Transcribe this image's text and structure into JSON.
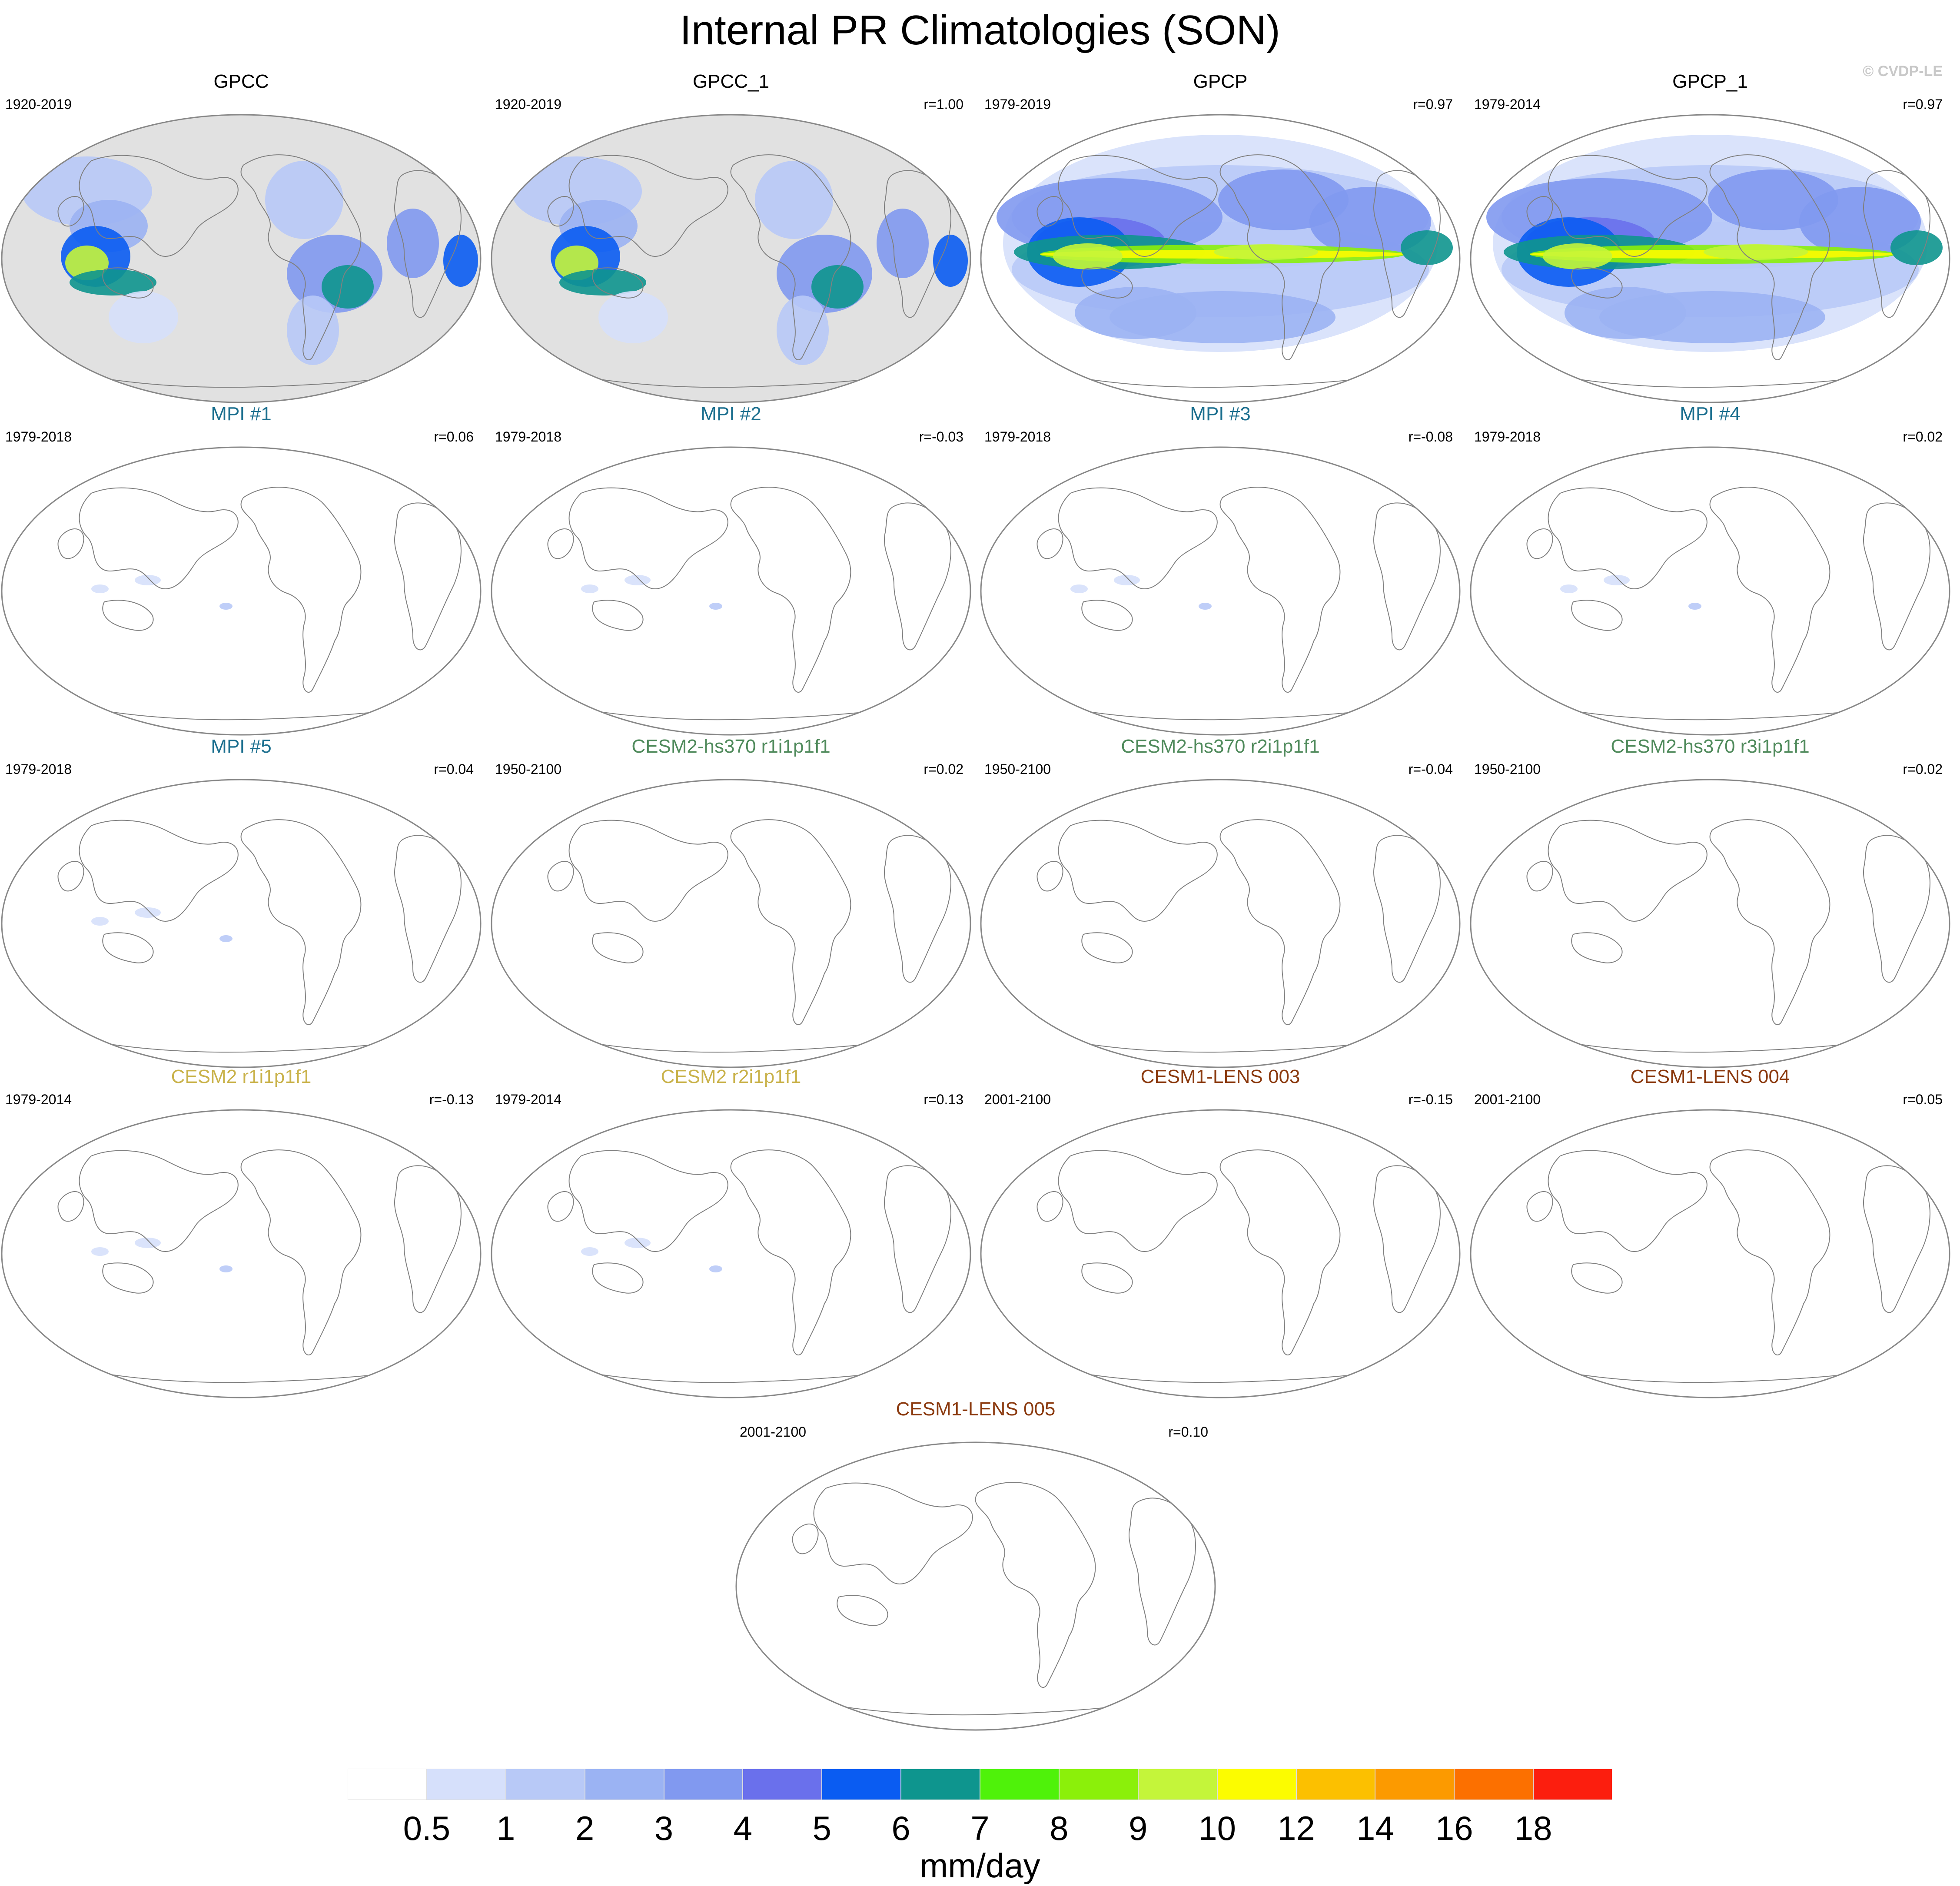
{
  "title": "Internal PR Climatologies (SON)",
  "credit": "© CVDP-LE",
  "panels": [
    {
      "title": "GPCC",
      "years": "1920-2019",
      "r": "",
      "title_color": "#000000",
      "field": "land_obs"
    },
    {
      "title": "GPCC_1",
      "years": "1920-2019",
      "r": "r=1.00",
      "title_color": "#000000",
      "field": "land_obs"
    },
    {
      "title": "GPCP",
      "years": "1979-2019",
      "r": "r=0.97",
      "title_color": "#000000",
      "field": "global_obs"
    },
    {
      "title": "GPCP_1",
      "years": "1979-2014",
      "r": "r=0.97",
      "title_color": "#000000",
      "field": "global_obs"
    },
    {
      "title": "MPI #1",
      "years": "1979-2018",
      "r": "r=0.06",
      "title_color": "#1a6e8e",
      "field": "sparse"
    },
    {
      "title": "MPI #2",
      "years": "1979-2018",
      "r": "r=-0.03",
      "title_color": "#1a6e8e",
      "field": "sparse"
    },
    {
      "title": "MPI #3",
      "years": "1979-2018",
      "r": "r=-0.08",
      "title_color": "#1a6e8e",
      "field": "sparse"
    },
    {
      "title": "MPI #4",
      "years": "1979-2018",
      "r": "r=0.02",
      "title_color": "#1a6e8e",
      "field": "sparse"
    },
    {
      "title": "MPI #5",
      "years": "1979-2018",
      "r": "r=0.04",
      "title_color": "#1a6e8e",
      "field": "sparse"
    },
    {
      "title": "CESM2-hs370 r1i1p1f1",
      "years": "1950-2100",
      "r": "r=0.02",
      "title_color": "#4f8a5b",
      "field": "empty"
    },
    {
      "title": "CESM2-hs370 r2i1p1f1",
      "years": "1950-2100",
      "r": "r=-0.04",
      "title_color": "#4f8a5b",
      "field": "empty"
    },
    {
      "title": "CESM2-hs370 r3i1p1f1",
      "years": "1950-2100",
      "r": "r=0.02",
      "title_color": "#4f8a5b",
      "field": "empty"
    },
    {
      "title": "CESM2 r1i1p1f1",
      "years": "1979-2014",
      "r": "r=-0.13",
      "title_color": "#c9b24a",
      "field": "sparse"
    },
    {
      "title": "CESM2 r2i1p1f1",
      "years": "1979-2014",
      "r": "r=0.13",
      "title_color": "#c9b24a",
      "field": "sparse"
    },
    {
      "title": "CESM1-LENS 003",
      "years": "2001-2100",
      "r": "r=-0.15",
      "title_color": "#8b3a0f",
      "field": "empty"
    },
    {
      "title": "CESM1-LENS 004",
      "years": "2001-2100",
      "r": "r=0.05",
      "title_color": "#8b3a0f",
      "field": "empty"
    },
    {
      "title": "CESM1-LENS 005",
      "years": "2001-2100",
      "r": "r=0.10",
      "title_color": "#8b3a0f",
      "field": "empty"
    }
  ],
  "colorbar": {
    "colors": [
      "#ffffff",
      "#d6e0fb",
      "#b8c9f7",
      "#9bb3f3",
      "#8199f0",
      "#6a70ec",
      "#0a5cf2",
      "#0e958e",
      "#4ff20a",
      "#8bf00a",
      "#c4f53a",
      "#fcfc00",
      "#fcc000",
      "#fc9a00",
      "#fc7000",
      "#fc1e0e"
    ],
    "labels": [
      "0.5",
      "1",
      "2",
      "3",
      "4",
      "5",
      "6",
      "7",
      "8",
      "9",
      "10",
      "12",
      "14",
      "16",
      "18"
    ],
    "units": "mm/day"
  },
  "legend_colors": {
    "land_mask": "#e1e1e1",
    "coast": "#808080"
  }
}
